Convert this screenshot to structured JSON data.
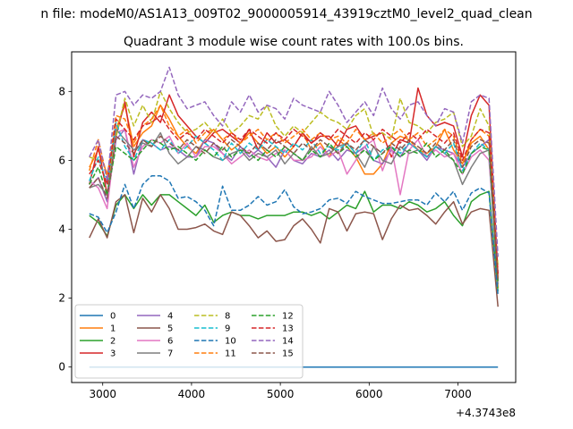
{
  "chart_data": {
    "type": "line",
    "suptitle": "n file: modeM0/AS1A13_009T02_9000005914_43919cztM0_level2_quad_clean",
    "title": "Quadrant 3 module wise count rates with 100.0s bins.",
    "xlabel": "",
    "ylabel": "",
    "x_offset_text": "+4.3743e8",
    "xlim": [
      2650,
      7650
    ],
    "ylim": [
      -0.45,
      9.15
    ],
    "xticks": [
      3000,
      4000,
      5000,
      6000,
      7000
    ],
    "yticks": [
      0,
      2,
      4,
      6,
      8
    ],
    "grid": false,
    "legend": {
      "position": "lower-left",
      "columns": 4
    },
    "x": [
      2850,
      2950,
      3050,
      3150,
      3250,
      3350,
      3450,
      3550,
      3650,
      3750,
      3850,
      3950,
      4050,
      4150,
      4250,
      4350,
      4450,
      4550,
      4650,
      4750,
      4850,
      4950,
      5050,
      5150,
      5250,
      5350,
      5450,
      5550,
      5650,
      5750,
      5850,
      5950,
      6050,
      6150,
      6250,
      6350,
      6450,
      6550,
      6650,
      6750,
      6850,
      6950,
      7050,
      7150,
      7250,
      7350,
      7450
    ],
    "series": [
      {
        "name": "0",
        "color": "#1f77b4",
        "dash": "solid",
        "values": [
          0,
          0,
          0,
          0,
          0,
          0,
          0,
          0,
          0,
          0,
          0,
          0,
          0,
          0,
          0,
          0,
          0,
          0,
          0,
          0,
          0,
          0,
          0,
          0,
          0,
          0,
          0,
          0,
          0,
          0,
          0,
          0,
          0,
          0,
          0,
          0,
          0,
          0,
          0,
          0,
          0,
          0,
          0,
          0,
          0,
          0,
          0
        ]
      },
      {
        "name": "1",
        "color": "#ff7f0e",
        "dash": "solid",
        "values": [
          5.8,
          6.3,
          5.6,
          6.9,
          7.6,
          6.4,
          6.8,
          7.0,
          7.6,
          7.2,
          6.7,
          6.4,
          6.2,
          6.6,
          6.9,
          6.6,
          6.3,
          6.5,
          6.8,
          6.5,
          6.2,
          6.4,
          6.1,
          6.4,
          6.8,
          6.3,
          6.5,
          6.1,
          6.6,
          6.4,
          6.1,
          5.6,
          5.6,
          5.9,
          6.5,
          6.7,
          6.6,
          6.3,
          6.2,
          6.4,
          6.9,
          6.3,
          5.9,
          6.5,
          6.7,
          6.3,
          2.3
        ]
      },
      {
        "name": "2",
        "color": "#2ca02c",
        "dash": "solid",
        "values": [
          4.4,
          4.2,
          3.8,
          4.7,
          5.0,
          4.6,
          5.0,
          4.7,
          5.0,
          5.0,
          4.8,
          4.6,
          4.4,
          4.7,
          4.2,
          4.4,
          4.5,
          4.4,
          4.4,
          4.3,
          4.4,
          4.4,
          4.4,
          4.5,
          4.5,
          4.4,
          4.5,
          4.3,
          4.5,
          4.7,
          4.6,
          5.1,
          4.5,
          4.7,
          4.7,
          4.6,
          4.8,
          4.7,
          4.5,
          4.6,
          4.8,
          4.4,
          4.1,
          4.8,
          5.0,
          5.1,
          2.2
        ]
      },
      {
        "name": "3",
        "color": "#d62728",
        "dash": "solid",
        "values": [
          5.3,
          6.4,
          5.0,
          6.7,
          7.7,
          6.1,
          7.1,
          7.4,
          7.1,
          7.9,
          7.3,
          7.0,
          6.7,
          6.5,
          6.8,
          6.9,
          6.7,
          6.5,
          6.9,
          6.3,
          6.8,
          6.5,
          6.6,
          6.4,
          6.8,
          6.5,
          6.7,
          6.7,
          6.4,
          6.9,
          7.0,
          6.6,
          6.7,
          6.8,
          6.1,
          6.6,
          6.5,
          8.1,
          7.3,
          7.0,
          7.1,
          7.0,
          6.1,
          7.3,
          7.9,
          7.6,
          2.7
        ]
      },
      {
        "name": "4",
        "color": "#9467bd",
        "dash": "solid",
        "values": [
          5.2,
          5.5,
          4.8,
          6.6,
          6.9,
          5.6,
          6.6,
          6.5,
          6.3,
          6.4,
          6.3,
          6.1,
          6.1,
          6.6,
          6.5,
          6.2,
          6.0,
          6.4,
          6.1,
          6.3,
          6.1,
          5.8,
          6.3,
          6.0,
          5.9,
          6.2,
          6.1,
          6.3,
          6.0,
          6.3,
          6.2,
          6.4,
          6.0,
          5.9,
          6.3,
          6.1,
          6.5,
          6.3,
          6.0,
          6.4,
          6.3,
          6.2,
          5.8,
          6.2,
          6.4,
          6.6,
          2.6
        ]
      },
      {
        "name": "5",
        "color": "#8c564b",
        "dash": "solid",
        "values": [
          3.75,
          4.3,
          3.75,
          4.8,
          5.0,
          3.9,
          4.9,
          4.5,
          5.0,
          4.6,
          4.0,
          4.0,
          4.05,
          4.15,
          3.95,
          3.85,
          4.5,
          4.4,
          4.1,
          3.75,
          3.95,
          3.65,
          3.7,
          4.1,
          4.3,
          4.0,
          3.6,
          4.6,
          4.5,
          3.95,
          4.45,
          4.5,
          4.45,
          3.7,
          4.3,
          4.7,
          4.55,
          4.6,
          4.4,
          4.15,
          4.5,
          4.8,
          4.15,
          4.5,
          4.6,
          4.55,
          1.75
        ]
      },
      {
        "name": "6",
        "color": "#e377c2",
        "dash": "solid",
        "values": [
          5.4,
          5.2,
          4.6,
          6.8,
          6.9,
          5.8,
          6.4,
          6.6,
          6.5,
          6.7,
          6.2,
          6.5,
          6.1,
          6.4,
          6.4,
          6.2,
          5.9,
          6.1,
          6.3,
          6.1,
          6.0,
          6.2,
          6.3,
          6.0,
          6.0,
          6.1,
          6.4,
          6.1,
          6.3,
          5.6,
          6.0,
          6.4,
          6.6,
          5.7,
          6.4,
          5.0,
          6.3,
          6.6,
          6.1,
          6.3,
          6.1,
          6.2,
          5.6,
          6.1,
          6.3,
          6.0,
          2.5
        ]
      },
      {
        "name": "7",
        "color": "#7f7f7f",
        "dash": "solid",
        "values": [
          5.2,
          5.3,
          5.0,
          6.9,
          6.6,
          6.3,
          6.5,
          6.4,
          6.8,
          6.2,
          5.9,
          6.1,
          6.4,
          6.3,
          6.1,
          6.0,
          6.2,
          6.3,
          6.0,
          6.2,
          6.1,
          6.3,
          5.9,
          6.2,
          6.0,
          6.4,
          6.1,
          6.2,
          6.4,
          6.5,
          6.2,
          5.8,
          6.4,
          6.0,
          5.9,
          6.4,
          6.2,
          6.3,
          6.1,
          6.4,
          6.2,
          6.0,
          5.3,
          5.8,
          6.2,
          6.3,
          2.4
        ]
      },
      {
        "name": "8",
        "color": "#bcbd22",
        "dash": "dashed",
        "values": [
          6.1,
          6.0,
          5.3,
          6.7,
          7.8,
          7.0,
          7.6,
          7.1,
          8.0,
          7.5,
          7.1,
          6.8,
          6.9,
          7.1,
          6.8,
          7.2,
          6.8,
          7.0,
          7.3,
          7.2,
          7.6,
          7.0,
          6.7,
          7.0,
          6.8,
          7.1,
          7.4,
          7.2,
          7.1,
          6.9,
          7.3,
          7.5,
          6.7,
          6.8,
          6.6,
          7.8,
          7.1,
          7.0,
          6.8,
          7.1,
          7.2,
          7.4,
          6.4,
          6.7,
          7.5,
          7.0,
          2.9
        ]
      },
      {
        "name": "9",
        "color": "#17becf",
        "dash": "dashed",
        "values": [
          5.4,
          6.1,
          5.3,
          7.1,
          6.4,
          6.0,
          6.6,
          6.5,
          6.3,
          6.6,
          6.2,
          6.4,
          6.7,
          6.5,
          6.3,
          6.0,
          6.5,
          6.2,
          6.5,
          6.3,
          6.6,
          6.4,
          6.2,
          6.5,
          6.3,
          6.6,
          6.2,
          6.4,
          6.3,
          6.5,
          6.2,
          6.6,
          6.0,
          6.3,
          6.4,
          6.2,
          6.5,
          6.3,
          6.1,
          6.4,
          6.2,
          6.5,
          5.7,
          6.2,
          6.5,
          6.3,
          2.5
        ]
      },
      {
        "name": "10",
        "color": "#1f77b4",
        "dash": "dashed",
        "values": [
          4.45,
          4.35,
          3.9,
          4.5,
          5.3,
          4.6,
          5.3,
          5.55,
          5.55,
          5.4,
          4.9,
          4.95,
          4.8,
          4.55,
          4.1,
          5.25,
          4.55,
          4.55,
          4.7,
          4.95,
          4.7,
          4.8,
          5.15,
          4.65,
          4.45,
          4.5,
          4.6,
          4.85,
          4.9,
          4.75,
          5.1,
          4.95,
          4.85,
          4.75,
          4.75,
          4.8,
          4.85,
          4.85,
          4.7,
          5.05,
          4.8,
          5.1,
          4.55,
          5.05,
          5.2,
          5.05,
          2.1
        ]
      },
      {
        "name": "11",
        "color": "#ff7f0e",
        "dash": "dashed",
        "values": [
          5.7,
          6.6,
          5.5,
          7.3,
          7.2,
          6.5,
          7.0,
          7.2,
          7.6,
          7.0,
          6.7,
          6.9,
          6.5,
          6.8,
          6.9,
          6.6,
          6.8,
          6.5,
          6.7,
          6.9,
          6.6,
          6.8,
          6.5,
          6.7,
          6.9,
          6.6,
          6.8,
          6.6,
          6.7,
          6.5,
          6.9,
          6.6,
          6.8,
          6.5,
          6.7,
          6.9,
          6.6,
          6.8,
          6.4,
          6.6,
          6.9,
          6.7,
          5.9,
          6.6,
          6.9,
          6.7,
          2.6
        ]
      },
      {
        "name": "12",
        "color": "#2ca02c",
        "dash": "dashed",
        "values": [
          5.3,
          5.8,
          5.0,
          6.4,
          6.2,
          6.0,
          6.3,
          6.6,
          6.5,
          6.3,
          6.4,
          6.2,
          6.0,
          6.3,
          6.1,
          6.4,
          6.1,
          6.3,
          6.2,
          6.0,
          6.3,
          6.1,
          6.4,
          6.2,
          6.0,
          6.3,
          6.1,
          6.5,
          6.2,
          6.4,
          6.1,
          6.3,
          6.0,
          6.2,
          6.4,
          6.1,
          6.3,
          6.2,
          6.5,
          6.1,
          6.3,
          6.0,
          5.6,
          6.2,
          6.4,
          6.3,
          2.5
        ]
      },
      {
        "name": "13",
        "color": "#d62728",
        "dash": "dashed",
        "values": [
          5.6,
          6.0,
          5.3,
          7.2,
          6.9,
          6.6,
          7.0,
          7.1,
          7.3,
          6.9,
          6.6,
          6.8,
          6.6,
          6.9,
          6.7,
          6.5,
          6.8,
          6.6,
          6.9,
          6.7,
          6.5,
          6.8,
          6.6,
          6.9,
          6.7,
          6.5,
          6.8,
          6.6,
          6.9,
          6.7,
          6.5,
          6.8,
          6.6,
          6.9,
          6.7,
          6.5,
          6.8,
          6.6,
          6.9,
          6.7,
          6.5,
          6.8,
          6.0,
          6.6,
          6.9,
          6.8,
          2.7
        ]
      },
      {
        "name": "14",
        "color": "#9467bd",
        "dash": "dashed",
        "values": [
          6.1,
          6.6,
          5.4,
          7.9,
          8.0,
          7.6,
          7.9,
          7.8,
          8.0,
          8.7,
          7.9,
          7.5,
          7.6,
          7.7,
          7.3,
          7.0,
          7.7,
          7.4,
          7.9,
          7.4,
          7.6,
          7.5,
          7.2,
          7.8,
          7.6,
          7.5,
          7.4,
          8.0,
          7.6,
          7.1,
          7.4,
          7.7,
          7.3,
          8.1,
          7.5,
          7.2,
          7.6,
          7.7,
          7.3,
          7.0,
          7.5,
          7.4,
          6.5,
          7.7,
          7.9,
          7.8,
          3.2
        ]
      },
      {
        "name": "15",
        "color": "#8c564b",
        "dash": "dashed",
        "values": [
          5.2,
          5.5,
          4.9,
          6.7,
          6.5,
          6.2,
          6.6,
          6.4,
          6.7,
          6.5,
          6.3,
          6.6,
          6.4,
          6.2,
          6.5,
          6.3,
          6.6,
          6.4,
          6.2,
          6.5,
          6.3,
          6.6,
          6.4,
          6.2,
          6.5,
          6.3,
          6.6,
          6.4,
          6.2,
          6.5,
          6.3,
          6.6,
          6.4,
          6.2,
          6.5,
          6.3,
          6.6,
          6.4,
          6.2,
          6.5,
          6.3,
          6.6,
          5.8,
          6.4,
          6.6,
          6.5,
          2.5
        ]
      }
    ]
  }
}
